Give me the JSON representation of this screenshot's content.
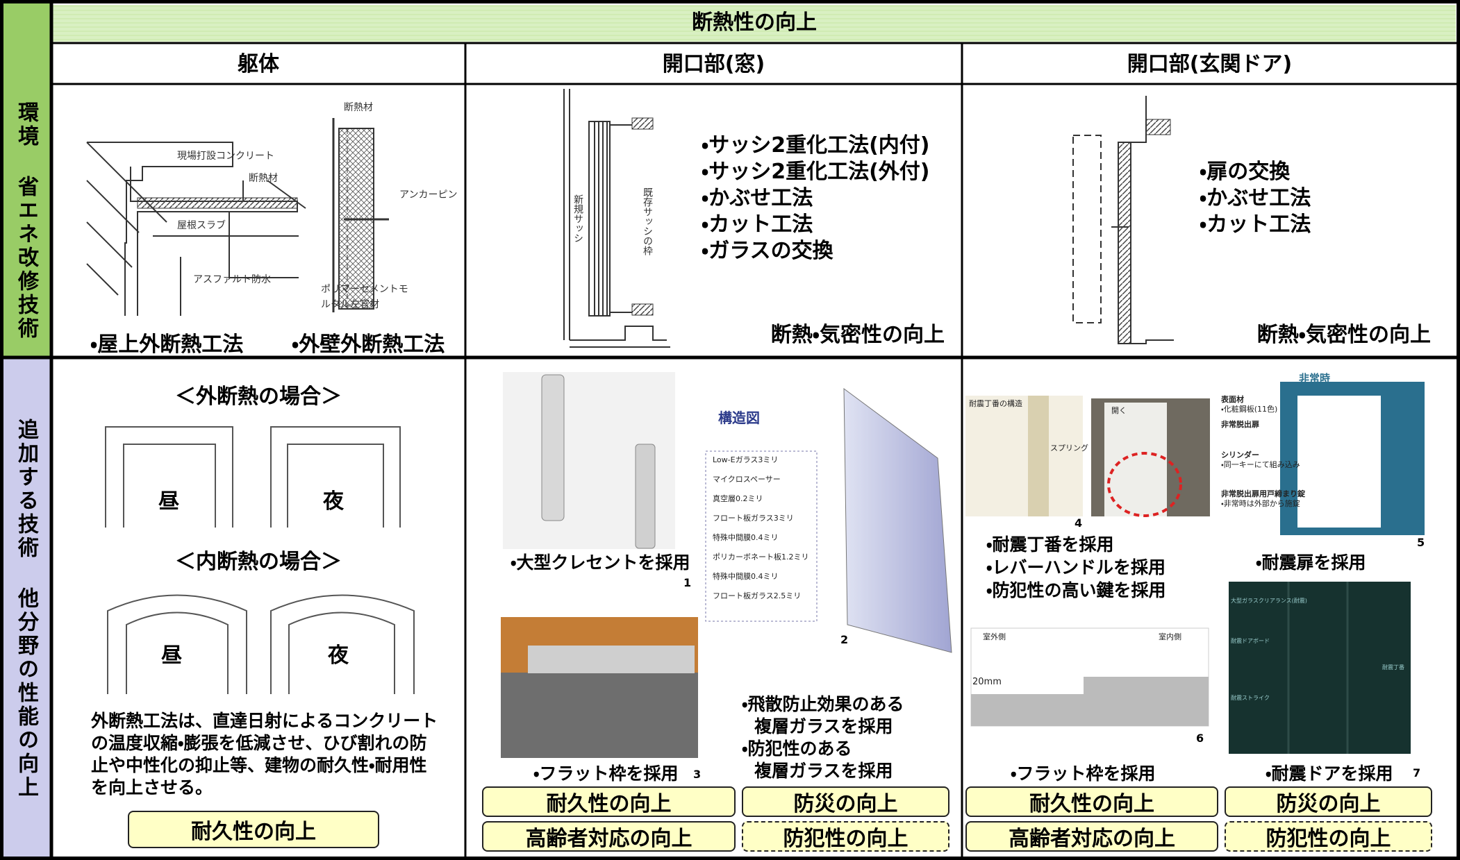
{
  "side": {
    "top": "環境 省エネ改修技術",
    "bottom": "追加する技術 他分野の性能の向上"
  },
  "header": {
    "title": "断熱性の向上",
    "columns": [
      "躯体",
      "開口部(窓)",
      "開口部(玄関ドア)"
    ]
  },
  "row1": {
    "body": {
      "labels": [
        "断熱材",
        "現場打設コンクリート",
        "断熱材",
        "屋根スラブ",
        "アスファルト防水",
        "アンカーピン",
        "ポリマーセメントモ",
        "ルタル左官材"
      ],
      "methods": [
        "・屋上外断熱工法",
        "・外壁外断熱工法"
      ]
    },
    "window": {
      "labels": [
        "新規サッシ",
        "既存サッシの枠"
      ],
      "methods": [
        "・サッシ2重化工法(内付)",
        "・サッシ2重化工法(外付)",
        "・かぶせ工法",
        "・カット工法",
        "・ガラスの交換"
      ],
      "effect": "断熱・気密性の向上"
    },
    "door": {
      "methods": [
        "・扉の交換",
        "・かぶせ工法",
        "・カット工法"
      ],
      "effect": "断熱・気密性の向上"
    }
  },
  "row2": {
    "body": {
      "headings": [
        "＜外断熱の場合＞",
        "＜内断熱の場合＞"
      ],
      "labels": [
        "昼",
        "夜",
        "昼",
        "夜"
      ],
      "description": "外断熱工法は、直達日射によるコンクリートの温度収縮・膨張を低減させ、ひび割れの防止や中性化の抑止等、建物の耐久性・耐用性を向上させる。",
      "badge": "耐久性の向上"
    },
    "window": {
      "captions": [
        "・大型クレセントを採用",
        "・フラット枠を採用"
      ],
      "numbers": [
        1,
        2,
        3
      ],
      "diagram_title": "構造図",
      "diagram_labels": [
        "Low-Eガラス3ミリ",
        "マイクロスペーサー",
        "真空層0.2ミリ",
        "フロート板ガラス3ミリ",
        "特殊中間膜0.4ミリ",
        "ポリカーボネート板1.2ミリ",
        "特殊中間膜0.4ミリ",
        "フロート板ガラス2.5ミリ"
      ],
      "glass": [
        "・飛散防止効果のある",
        "複層ガラスを採用",
        "・防犯性のある",
        "複層ガラスを採用"
      ],
      "badges": [
        "耐久性の向上",
        "防災の向上",
        "高齢者対応の向上",
        "防犯性の向上"
      ]
    },
    "door": {
      "photo_labels": [
        "耐震丁番の構造",
        "スプリング",
        "開く"
      ],
      "door_labels": [
        "非常時",
        "表面材",
        "・化粧鋼板(11色)",
        "非常脱出扉",
        "シリンダー",
        "・同一キーにて組み込み",
        "非常脱出扉用戸締まり錠",
        "・非常時は外部から施錠"
      ],
      "section_labels": [
        "室外側",
        "室内側",
        "20mm"
      ],
      "tall_labels": [
        "大型ガラスクリアランス(耐震)",
        "耐震ドアボード",
        "耐震ストライク",
        "耐震丁番"
      ],
      "numbers": [
        4,
        5,
        6,
        7
      ],
      "features": [
        "・耐震丁番を採用",
        "・レバーハンドルを採用",
        "・防犯性の高い鍵を採用"
      ],
      "captions": [
        "・耐震扉を採用",
        "・フラット枠を採用",
        "・耐震ドアを採用"
      ],
      "badges": [
        "耐久性の向上",
        "防災の向上",
        "高齢者対応の向上",
        "防犯性の向上"
      ]
    }
  }
}
